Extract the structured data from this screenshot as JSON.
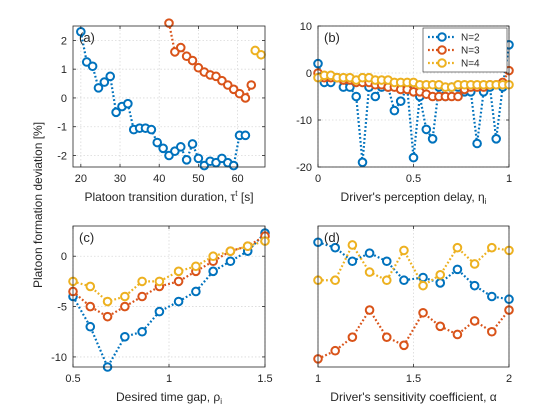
{
  "figure": {
    "ylabel": "Platoon formation deviation [%]"
  },
  "colors": {
    "N=2": "#0072BD",
    "N=3": "#D95319",
    "N=4": "#EDB120"
  },
  "chart_data": [
    {
      "type": "line",
      "panel_label": "(a)",
      "xlabel": "Platoon transition duration, τ^t [s]",
      "xlim": [
        18,
        67
      ],
      "ylim": [
        -2.4,
        2.5
      ],
      "xticks": [
        20,
        30,
        40,
        50,
        60
      ],
      "yticks": [
        -2,
        -1,
        0,
        1,
        2
      ],
      "grid": true,
      "series": [
        {
          "name": "N=2",
          "x": [
            20,
            21.5,
            23,
            24.5,
            26,
            27.5,
            29,
            30.5,
            32,
            33.5,
            35,
            36.5,
            38,
            39.5,
            41,
            42.5,
            44,
            45.5,
            47,
            48.5,
            50,
            51.5,
            53,
            54.5,
            56,
            57.5,
            59,
            60.5,
            62
          ],
          "y": [
            2.3,
            1.25,
            1.1,
            0.35,
            0.55,
            0.75,
            -0.5,
            -0.3,
            -0.2,
            -1.1,
            -1.05,
            -1.05,
            -1.1,
            -1.55,
            -1.75,
            -2.0,
            -1.85,
            -1.7,
            -2.15,
            -1.6,
            -2.1,
            -2.35,
            -2.2,
            -2.25,
            -2.1,
            -2.25,
            -2.35,
            -1.3,
            -1.3
          ]
        },
        {
          "name": "N=3",
          "x": [
            42.5,
            44,
            45.5,
            47,
            48.5,
            50,
            51.5,
            53,
            54.5,
            56,
            57.5,
            59,
            60.5,
            62,
            63.5
          ],
          "y": [
            2.6,
            1.6,
            1.75,
            1.45,
            1.3,
            1.05,
            0.9,
            0.8,
            0.75,
            0.6,
            0.45,
            0.3,
            0.15,
            0.0,
            0.45
          ]
        },
        {
          "name": "N=4",
          "x": [
            64.5,
            66
          ],
          "y": [
            1.65,
            1.5
          ]
        }
      ]
    },
    {
      "type": "line",
      "panel_label": "(b)",
      "xlabel": "Driver's perception delay, η_i",
      "xlim": [
        0,
        1
      ],
      "ylim": [
        -20,
        10
      ],
      "xticks": [
        0,
        0.5,
        1
      ],
      "yticks": [
        -20,
        -10,
        0,
        10
      ],
      "grid": true,
      "legend": {
        "position": "top-right",
        "entries": [
          "N=2",
          "N=3",
          "N=4"
        ]
      },
      "series": [
        {
          "name": "N=2",
          "x": [
            0,
            0.033,
            0.067,
            0.1,
            0.133,
            0.167,
            0.2,
            0.233,
            0.267,
            0.3,
            0.333,
            0.367,
            0.4,
            0.433,
            0.467,
            0.5,
            0.533,
            0.567,
            0.6,
            0.633,
            0.667,
            0.7,
            0.733,
            0.767,
            0.8,
            0.833,
            0.867,
            0.9,
            0.933,
            0.967,
            1.0
          ],
          "y": [
            2,
            -2,
            -2,
            -1,
            -3,
            -3,
            -5,
            -19,
            -3,
            -5,
            -3,
            -3,
            -8,
            -6,
            -3,
            -18,
            -5,
            -12,
            -14,
            -3,
            -5,
            -3,
            -3,
            -4,
            -4,
            -15,
            -4,
            -3,
            -14,
            -3,
            6
          ]
        },
        {
          "name": "N=3",
          "x": [
            0,
            0.033,
            0.067,
            0.1,
            0.133,
            0.167,
            0.2,
            0.233,
            0.267,
            0.3,
            0.333,
            0.367,
            0.4,
            0.433,
            0.467,
            0.5,
            0.533,
            0.567,
            0.6,
            0.633,
            0.667,
            0.7,
            0.733,
            0.767,
            0.8,
            0.833,
            0.867,
            0.9,
            0.933,
            0.967,
            1.0
          ],
          "y": [
            0,
            -1,
            -1,
            -1,
            -1.5,
            -1.5,
            -2,
            -2,
            -2,
            -2.5,
            -2.5,
            -3,
            -3,
            -3.5,
            -3.5,
            -4,
            -4,
            -4.5,
            -5,
            -5,
            -5,
            -5,
            -5,
            -3.5,
            -3,
            -3,
            -3,
            -2.5,
            -2.5,
            -2,
            0.5
          ]
        },
        {
          "name": "N=4",
          "x": [
            0,
            0.033,
            0.067,
            0.1,
            0.133,
            0.167,
            0.2,
            0.233,
            0.267,
            0.3,
            0.333,
            0.367,
            0.4,
            0.433,
            0.467,
            0.5,
            0.533,
            0.567,
            0.6,
            0.633,
            0.667,
            0.7,
            0.733,
            0.767,
            0.8,
            0.833,
            0.867,
            0.9,
            0.933,
            0.967,
            1.0
          ],
          "y": [
            -1,
            -0.5,
            -0.5,
            -1,
            -1,
            -1,
            -1.5,
            -1,
            -1,
            -1.5,
            -1.5,
            -1.5,
            -2,
            -2,
            -2,
            -2,
            -2.5,
            -2.5,
            -2.5,
            -2.5,
            -3,
            -3,
            -2.5,
            -2.5,
            -2.5,
            -2.5,
            -2.5,
            -2.5,
            -2.5,
            -2.5,
            -2.5
          ]
        }
      ]
    },
    {
      "type": "line",
      "panel_label": "(c)",
      "xlabel": "Desired time gap, ρ_i",
      "xlim": [
        0.5,
        1.5
      ],
      "ylim": [
        -11,
        3
      ],
      "xticks": [
        0.5,
        1,
        1.5
      ],
      "yticks": [
        -10,
        -5,
        0
      ],
      "grid": true,
      "series": [
        {
          "name": "N=2",
          "x": [
            0.5,
            0.59,
            0.68,
            0.77,
            0.86,
            0.95,
            1.05,
            1.14,
            1.23,
            1.32,
            1.41,
            1.5
          ],
          "y": [
            -4,
            -7,
            -11,
            -8,
            -7.5,
            -5.5,
            -4.5,
            -3.5,
            -1.5,
            -0.5,
            0.5,
            2.3
          ]
        },
        {
          "name": "N=3",
          "x": [
            0.5,
            0.59,
            0.68,
            0.77,
            0.86,
            0.95,
            1.05,
            1.14,
            1.23,
            1.32,
            1.41,
            1.5
          ],
          "y": [
            -3.5,
            -5,
            -6,
            -5,
            -4,
            -3,
            -2.5,
            -1.5,
            -0.5,
            0.5,
            1,
            2
          ]
        },
        {
          "name": "N=4",
          "x": [
            0.5,
            0.59,
            0.68,
            0.77,
            0.86,
            0.95,
            1.05,
            1.14,
            1.23,
            1.32,
            1.41,
            1.5
          ],
          "y": [
            -2.5,
            -3,
            -4.5,
            -4,
            -2.5,
            -2.5,
            -1.5,
            -1,
            0,
            0.5,
            1,
            1.5
          ]
        }
      ]
    },
    {
      "type": "line",
      "panel_label": "(d)",
      "xlabel": "Driver's sensitivity coefficient, α",
      "xlim": [
        1,
        2
      ],
      "ylim": [
        0,
        2.6
      ],
      "xticks": [
        1,
        1.5,
        2
      ],
      "yticks": [],
      "grid": true,
      "series": [
        {
          "name": "N=2",
          "x": [
            1,
            1.09,
            1.18,
            1.27,
            1.36,
            1.45,
            1.55,
            1.64,
            1.73,
            1.82,
            1.91,
            2.0
          ],
          "y": [
            2.3,
            2.2,
            1.95,
            2.1,
            1.95,
            1.6,
            1.65,
            1.55,
            1.8,
            1.5,
            1.3,
            1.25
          ]
        },
        {
          "name": "N=3",
          "x": [
            1,
            1.09,
            1.18,
            1.27,
            1.36,
            1.45,
            1.55,
            1.64,
            1.73,
            1.82,
            1.91,
            2.0
          ],
          "y": [
            0.15,
            0.3,
            0.55,
            1.05,
            0.55,
            0.4,
            1.0,
            0.75,
            0.6,
            0.85,
            0.65,
            1.05
          ]
        },
        {
          "name": "N=4",
          "x": [
            1,
            1.09,
            1.18,
            1.27,
            1.36,
            1.45,
            1.55,
            1.64,
            1.73,
            1.82,
            1.91,
            2.0
          ],
          "y": [
            1.6,
            1.6,
            2.25,
            1.75,
            1.6,
            2.15,
            1.5,
            1.7,
            2.2,
            1.9,
            2.2,
            2.15
          ]
        }
      ]
    }
  ]
}
